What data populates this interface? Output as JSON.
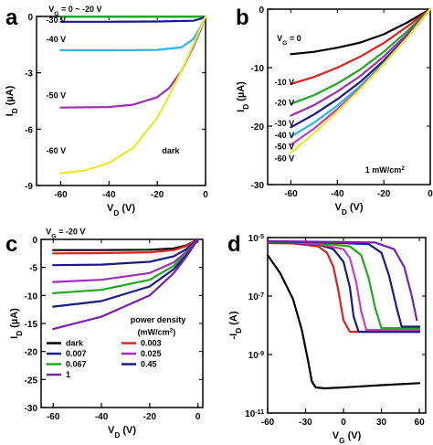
{
  "figure": {
    "panels": [
      "a",
      "b",
      "c",
      "d"
    ]
  },
  "chart_data": [
    {
      "id": "a",
      "type": "line",
      "panel_label": "a",
      "xlabel": "V_D (V)",
      "ylabel": "I_D (µA)",
      "xlim": [
        -70,
        0
      ],
      "ylim": [
        -9,
        0
      ],
      "xticks": [
        -60,
        -40,
        -20,
        0
      ],
      "xtick_labels": [
        "-60",
        "-40",
        "-20",
        "0"
      ],
      "yticks": [
        -9,
        -6,
        -3,
        0
      ],
      "ytick_labels": [
        "-9",
        "-6",
        "-3",
        "0"
      ],
      "annotations": [
        {
          "text": "V_G = 0 ~ -20 V",
          "x": -65,
          "y": 0.25
        },
        {
          "text": "-30 V",
          "x": -66,
          "y": -0.35
        },
        {
          "text": "-40 V",
          "x": -66,
          "y": -1.35
        },
        {
          "text": "-50 V",
          "x": -66,
          "y": -4.35
        },
        {
          "text": "-60 V",
          "x": -66,
          "y": -7.3
        },
        {
          "text": "dark",
          "x": -18,
          "y": -7.3
        }
      ],
      "series": [
        {
          "color": "#1fa81f",
          "x": [
            -60,
            -40,
            -20,
            -5,
            -2,
            0
          ],
          "y": [
            -0.02,
            -0.02,
            -0.02,
            -0.02,
            -0.02,
            0
          ]
        },
        {
          "color": "#1a1a80",
          "x": [
            -60,
            -40,
            -20,
            -5,
            -2,
            0
          ],
          "y": [
            -0.28,
            -0.28,
            -0.27,
            -0.23,
            -0.12,
            0
          ]
        },
        {
          "color": "#29b6e8",
          "x": [
            -60,
            -40,
            -20,
            -10,
            -5,
            -2,
            0
          ],
          "y": [
            -1.8,
            -1.8,
            -1.78,
            -1.65,
            -1.2,
            -0.55,
            0
          ]
        },
        {
          "color": "#9b30b0",
          "x": [
            -60,
            -40,
            -30,
            -20,
            -15,
            -10,
            -5,
            -2,
            0
          ],
          "y": [
            -4.85,
            -4.82,
            -4.7,
            -4.3,
            -3.8,
            -2.9,
            -1.6,
            -0.7,
            0
          ]
        },
        {
          "color": "#eaea2a",
          "x": [
            -60,
            -50,
            -40,
            -30,
            -20,
            -15,
            -10,
            -5,
            -2,
            0
          ],
          "y": [
            -8.35,
            -8.2,
            -7.8,
            -7.0,
            -5.4,
            -4.2,
            -2.9,
            -1.5,
            -0.6,
            0
          ]
        }
      ]
    },
    {
      "id": "b",
      "type": "line",
      "panel_label": "b",
      "xlabel": "V_D (V)",
      "ylabel": "I_D (µA)",
      "xlim": [
        -70,
        0
      ],
      "ylim": [
        -30,
        0
      ],
      "xticks": [
        -60,
        -40,
        -20,
        0
      ],
      "xtick_labels": [
        "-60",
        "-40",
        "-20",
        "0"
      ],
      "yticks": [
        -30,
        -20,
        -10,
        0
      ],
      "ytick_labels": [
        "-30",
        "-20",
        "-10",
        "0"
      ],
      "annotations": [
        {
          "text": "V_G = 0",
          "x": -66,
          "y": -5.5
        },
        {
          "text": "-10 V",
          "x": -67,
          "y": -13
        },
        {
          "text": "-20 V",
          "x": -67,
          "y": -16.5
        },
        {
          "text": "-30 V",
          "x": -67,
          "y": -20
        },
        {
          "text": "-40 V",
          "x": -67,
          "y": -22
        },
        {
          "text": "-50 V",
          "x": -67,
          "y": -24
        },
        {
          "text": "-60 V",
          "x": -67,
          "y": -26
        },
        {
          "text": "1 mW/cm²",
          "x": -28,
          "y": -28
        }
      ],
      "series": [
        {
          "color": "#000000",
          "x": [
            -60,
            -50,
            -40,
            -30,
            -20,
            -10,
            0
          ],
          "y": [
            -7.7,
            -7.3,
            -6.6,
            -5.7,
            -4.3,
            -2.3,
            0
          ]
        },
        {
          "color": "#e02020",
          "x": [
            -60,
            -50,
            -40,
            -30,
            -20,
            -10,
            0
          ],
          "y": [
            -12.8,
            -11.6,
            -10.0,
            -8.1,
            -5.8,
            -3.0,
            0
          ]
        },
        {
          "color": "#1fa81f",
          "x": [
            -60,
            -50,
            -40,
            -30,
            -20,
            -10,
            0
          ],
          "y": [
            -16.2,
            -14.7,
            -12.7,
            -10.3,
            -7.3,
            -3.8,
            0
          ]
        },
        {
          "color": "#9b30b0",
          "x": [
            -60,
            -50,
            -40,
            -30,
            -20,
            -10,
            0
          ],
          "y": [
            -18.2,
            -16.4,
            -14.1,
            -11.4,
            -8.1,
            -4.3,
            0
          ]
        },
        {
          "color": "#1a1a80",
          "x": [
            -60,
            -50,
            -40,
            -30,
            -20,
            -10,
            0
          ],
          "y": [
            -20.2,
            -18.0,
            -15.4,
            -12.4,
            -8.8,
            -4.7,
            0
          ]
        },
        {
          "color": "#29b6e8",
          "x": [
            -60,
            -50,
            -40,
            -30,
            -20,
            -10,
            0
          ],
          "y": [
            -21.8,
            -19.4,
            -16.5,
            -13.1,
            -9.2,
            -4.9,
            0
          ]
        },
        {
          "color": "#c23ec4",
          "x": [
            -60,
            -50,
            -40,
            -30,
            -20,
            -10,
            0
          ],
          "y": [
            -23.2,
            -20.4,
            -17.1,
            -13.4,
            -9.3,
            -4.9,
            0
          ]
        },
        {
          "color": "#eaea2a",
          "x": [
            -60,
            -50,
            -40,
            -30,
            -20,
            -10,
            0
          ],
          "y": [
            -24.6,
            -21.2,
            -17.5,
            -13.6,
            -9.4,
            -4.9,
            0
          ]
        }
      ]
    },
    {
      "id": "c",
      "type": "line",
      "panel_label": "c",
      "xlabel": "V_D (V)",
      "ylabel": "I_D (µA)",
      "xlim": [
        -65,
        2
      ],
      "ylim": [
        -30,
        0
      ],
      "xticks": [
        -60,
        -40,
        -20,
        0
      ],
      "xtick_labels": [
        "-60",
        "-40",
        "-20",
        "0"
      ],
      "yticks": [
        -30,
        -25,
        -20,
        -15,
        -10,
        -5,
        0
      ],
      "ytick_labels": [
        "-30",
        "-25",
        "-20",
        "-15",
        "-10",
        "-5",
        "0"
      ],
      "annotations": [
        {
          "text": "V_G = -20 V",
          "x": -63,
          "y": 0.9
        },
        {
          "text": "power density",
          "x": -28,
          "y": -14.8
        },
        {
          "text": "(mW/cm²)",
          "x": -25,
          "y": -17.0
        }
      ],
      "legend": {
        "position": "bottom-left",
        "entries": [
          {
            "label": "dark",
            "color": "#000000"
          },
          {
            "label": "0.003",
            "color": "#e02020"
          },
          {
            "label": "0.007",
            "color": "#1a1a80"
          },
          {
            "label": "0.025",
            "color": "#9b30b0"
          },
          {
            "label": "0.067",
            "color": "#1fa81f"
          },
          {
            "label": "0.45",
            "color": "#1a1a80"
          },
          {
            "label": "1",
            "color": "#7a20b0"
          }
        ]
      },
      "series": [
        {
          "color": "#000000",
          "x": [
            -60,
            -40,
            -20,
            -10,
            -5,
            0
          ],
          "y": [
            -1.9,
            -1.9,
            -1.85,
            -1.6,
            -1.1,
            0
          ]
        },
        {
          "color": "#e02020",
          "x": [
            -60,
            -40,
            -20,
            -10,
            -5,
            0
          ],
          "y": [
            -2.5,
            -2.45,
            -2.3,
            -1.9,
            -1.2,
            0
          ]
        },
        {
          "color": "#1a1a80",
          "x": [
            -60,
            -40,
            -20,
            -10,
            -5,
            0
          ],
          "y": [
            -4.6,
            -4.5,
            -4.0,
            -3.0,
            -1.8,
            0
          ]
        },
        {
          "color": "#9b30b0",
          "x": [
            -60,
            -40,
            -20,
            -10,
            -5,
            0
          ],
          "y": [
            -7.6,
            -7.2,
            -6.0,
            -4.1,
            -2.3,
            0
          ]
        },
        {
          "color": "#1fa81f",
          "x": [
            -60,
            -40,
            -20,
            -10,
            -5,
            0
          ],
          "y": [
            -9.6,
            -9.0,
            -7.2,
            -4.7,
            -2.6,
            0
          ]
        },
        {
          "color": "#1a1a80",
          "x": [
            -60,
            -40,
            -20,
            -10,
            -5,
            0
          ],
          "y": [
            -12.0,
            -11.0,
            -8.4,
            -5.3,
            -2.9,
            0
          ]
        },
        {
          "color": "#7a20b0",
          "x": [
            -60,
            -40,
            -20,
            -10,
            -5,
            0
          ],
          "y": [
            -16.0,
            -13.8,
            -10.0,
            -6.0,
            -3.2,
            0
          ]
        }
      ]
    },
    {
      "id": "d",
      "type": "line",
      "panel_label": "d",
      "xlabel": "V_G (V)",
      "ylabel": "-I_D (A)",
      "yscale": "log",
      "xlim": [
        -60,
        65
      ],
      "ylim": [
        1e-11,
        1e-05
      ],
      "xticks": [
        -60,
        -30,
        0,
        30,
        60
      ],
      "xtick_labels": [
        "-60",
        "-30",
        "0",
        "30",
        "60"
      ],
      "yticks": [
        1e-11,
        1e-09,
        1e-07,
        1e-05
      ],
      "ytick_labels": [
        "10-11",
        "10-9",
        "10-7",
        "10-5"
      ],
      "series": [
        {
          "color": "#000000",
          "x": [
            -60,
            -50,
            -40,
            -33,
            -28,
            -25,
            -22,
            -15,
            0,
            30,
            60
          ],
          "y": [
            2.5e-06,
            6e-07,
            8e-08,
            7e-09,
            6e-10,
            1.2e-10,
            7.5e-11,
            7e-11,
            7.5e-11,
            9e-11,
            1.05e-10
          ]
        },
        {
          "color": "#e02020",
          "x": [
            -60,
            -40,
            -20,
            -13,
            -8,
            -4,
            0,
            5,
            60
          ],
          "y": [
            6.5e-06,
            6.3e-06,
            5e-06,
            3e-06,
            1e-06,
            1.5e-07,
            1.5e-08,
            6e-09,
            6e-09
          ]
        },
        {
          "color": "#1a1a80",
          "x": [
            -60,
            -40,
            -20,
            -8,
            0,
            5,
            8,
            12,
            60
          ],
          "y": [
            6.8e-06,
            6.6e-06,
            5.8e-06,
            4e-06,
            1.5e-06,
            2e-07,
            2e-08,
            6e-09,
            6e-09
          ]
        },
        {
          "color": "#c23ec4",
          "x": [
            -60,
            -40,
            -20,
            0,
            5,
            10,
            14,
            18,
            60
          ],
          "y": [
            7e-06,
            6.8e-06,
            6e-06,
            4e-06,
            2e-06,
            3e-07,
            3e-08,
            7e-09,
            7e-09
          ]
        },
        {
          "color": "#1fa81f",
          "x": [
            -60,
            -40,
            -20,
            5,
            14,
            20,
            25,
            30,
            60
          ],
          "y": [
            7.2e-06,
            7e-06,
            6.5e-06,
            5e-06,
            2.5e-06,
            4e-07,
            4e-08,
            8e-09,
            8e-09
          ]
        },
        {
          "color": "#1a1a80",
          "x": [
            -60,
            -40,
            -20,
            20,
            30,
            36,
            42,
            46,
            60
          ],
          "y": [
            7.4e-06,
            7.2e-06,
            7e-06,
            6e-06,
            3e-06,
            5e-07,
            4e-08,
            9e-09,
            9e-09
          ]
        },
        {
          "color": "#7a20b0",
          "x": [
            -60,
            -40,
            -20,
            25,
            40,
            48,
            54,
            58
          ],
          "y": [
            7.6e-06,
            7.4e-06,
            7.2e-06,
            6.8e-06,
            4e-06,
            1e-06,
            1e-07,
            1.5e-08
          ]
        }
      ]
    }
  ]
}
